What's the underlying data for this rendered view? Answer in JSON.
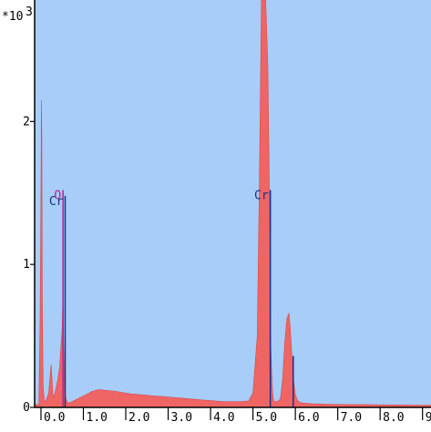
{
  "chart_data": {
    "type": "area",
    "y_multiplier_label": "*10",
    "y_multiplier_exponent": "3",
    "xlim": [
      -0.15,
      9.2
    ],
    "ylim": [
      0,
      2.85
    ],
    "x_ticks": [
      {
        "value": 0.0,
        "label": "0.0"
      },
      {
        "value": 1.0,
        "label": "1.0"
      },
      {
        "value": 2.0,
        "label": "2.0"
      },
      {
        "value": 3.0,
        "label": "3.0"
      },
      {
        "value": 4.0,
        "label": "4.0"
      },
      {
        "value": 5.0,
        "label": "5.0"
      },
      {
        "value": 6.0,
        "label": "6.0"
      },
      {
        "value": 7.0,
        "label": "7.0"
      },
      {
        "value": 8.0,
        "label": "8.0"
      },
      {
        "value": 9.0,
        "label": "9.0"
      }
    ],
    "y_ticks": [
      {
        "value": 0,
        "label": "0"
      },
      {
        "value": 1,
        "label": "1"
      },
      {
        "value": 2,
        "label": "2"
      }
    ],
    "spectrum": {
      "x": [
        -0.15,
        -0.05,
        -0.02,
        0.0,
        0.01,
        0.02,
        0.03,
        0.05,
        0.08,
        0.12,
        0.18,
        0.24,
        0.26,
        0.28,
        0.3,
        0.33,
        0.36,
        0.4,
        0.44,
        0.47,
        0.5,
        0.51,
        0.52,
        0.53,
        0.54,
        0.55,
        0.56,
        0.58,
        0.61,
        0.65,
        0.7,
        0.8,
        0.9,
        1.0,
        1.1,
        1.2,
        1.35,
        1.5,
        1.7,
        1.9,
        2.1,
        2.3,
        2.5,
        2.7,
        2.9,
        3.1,
        3.3,
        3.5,
        3.7,
        3.9,
        4.1,
        4.3,
        4.5,
        4.7,
        4.9,
        5.0,
        5.1,
        5.15,
        5.2,
        5.25,
        5.3,
        5.35,
        5.38,
        5.4,
        5.41,
        5.42,
        5.44,
        5.46,
        5.48,
        5.5,
        5.55,
        5.6,
        5.65,
        5.7,
        5.75,
        5.8,
        5.85,
        5.88,
        5.92,
        5.96,
        6.0,
        6.05,
        6.1,
        6.2,
        6.4,
        6.8,
        7.2,
        7.6,
        8.0,
        8.4,
        8.8,
        9.2
      ],
      "y": [
        0.02,
        0.02,
        0.6,
        1.55,
        2.15,
        1.9,
        0.8,
        0.15,
        0.04,
        0.05,
        0.1,
        0.3,
        0.2,
        0.1,
        0.07,
        0.1,
        0.14,
        0.2,
        0.28,
        0.42,
        0.55,
        0.7,
        0.78,
        0.55,
        0.35,
        0.22,
        0.13,
        0.07,
        0.04,
        0.03,
        0.035,
        0.05,
        0.065,
        0.08,
        0.095,
        0.11,
        0.125,
        0.12,
        0.115,
        0.105,
        0.095,
        0.09,
        0.085,
        0.08,
        0.075,
        0.07,
        0.065,
        0.06,
        0.055,
        0.05,
        0.045,
        0.04,
        0.04,
        0.04,
        0.045,
        0.1,
        0.5,
        1.55,
        2.85,
        2.85,
        2.85,
        2.4,
        1.7,
        1.1,
        0.7,
        0.45,
        0.25,
        0.12,
        0.06,
        0.04,
        0.04,
        0.045,
        0.06,
        0.2,
        0.45,
        0.62,
        0.66,
        0.56,
        0.35,
        0.18,
        0.09,
        0.05,
        0.035,
        0.03,
        0.025,
        0.022,
        0.02,
        0.02,
        0.018,
        0.017,
        0.016,
        0.015
      ]
    },
    "element_markers": [
      {
        "label": "O",
        "x": 0.52,
        "y": 1.52,
        "color": "#b0288a"
      },
      {
        "label": "Cr",
        "x": 0.57,
        "y": 1.48,
        "color": "#1f2d8a"
      },
      {
        "label": "Cr",
        "x": 5.41,
        "y": 1.52,
        "color": "#1f2d8a"
      },
      {
        "label": "",
        "x": 5.95,
        "y": 0.36,
        "color": "#1f2d8a"
      }
    ],
    "colors": {
      "plot_background": "#a7cdf8",
      "spectrum_fill": "#ee6564",
      "axis": "#000000"
    }
  }
}
